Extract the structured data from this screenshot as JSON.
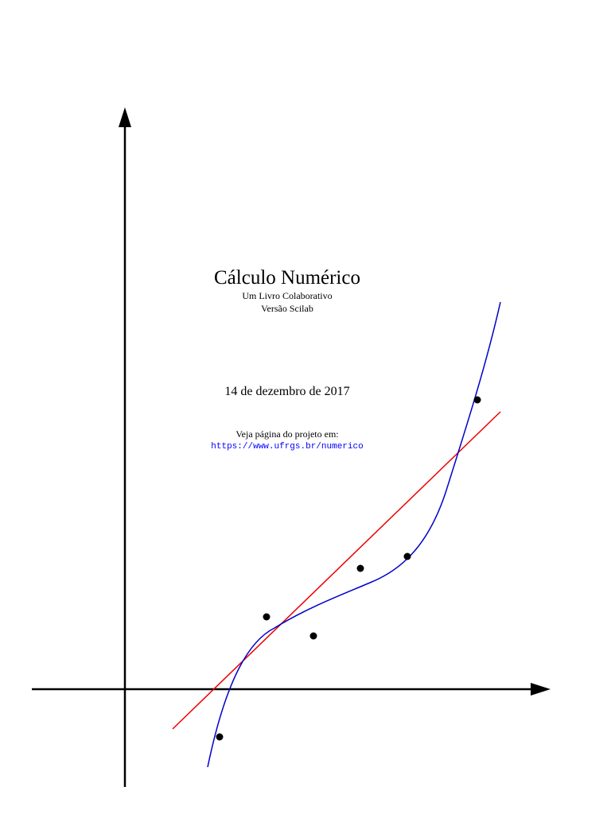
{
  "title": "Cálculo Numérico",
  "subtitle": "Um Livro Colaborativo",
  "version": "Versão Scilab",
  "date": "14 de dezembro de 2017",
  "project_note": "Veja página do projeto em:",
  "url": "https://www.ufrgs.br/numerico"
}
